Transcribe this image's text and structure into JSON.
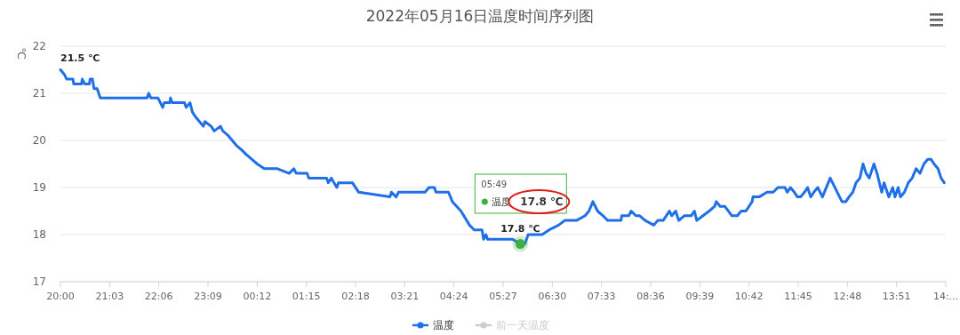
{
  "chart_data": {
    "type": "line",
    "title": "2022年05月16日温度时间序列图",
    "ylabel": "℃",
    "xlim": [
      "2022-05-15T20:00",
      "2022-05-16T14:54"
    ],
    "ylim": [
      17,
      22
    ],
    "yticks": [
      17,
      18,
      19,
      20,
      21,
      22
    ],
    "xticks": [
      {
        "value": "2022-05-15T20:00",
        "label": "20:00"
      },
      {
        "value": "2022-05-15T21:03",
        "label": "21:03"
      },
      {
        "value": "2022-05-15T22:06",
        "label": "22:06"
      },
      {
        "value": "2022-05-15T23:09",
        "label": "23:09"
      },
      {
        "value": "2022-05-16T00:12",
        "label": "00:12"
      },
      {
        "value": "2022-05-16T01:15",
        "label": "01:15"
      },
      {
        "value": "2022-05-16T02:18",
        "label": "02:18"
      },
      {
        "value": "2022-05-16T03:21",
        "label": "03:21"
      },
      {
        "value": "2022-05-16T04:24",
        "label": "04:24"
      },
      {
        "value": "2022-05-16T05:27",
        "label": "05:27"
      },
      {
        "value": "2022-05-16T06:30",
        "label": "06:30"
      },
      {
        "value": "2022-05-16T07:33",
        "label": "07:33"
      },
      {
        "value": "2022-05-16T08:36",
        "label": "08:36"
      },
      {
        "value": "2022-05-16T09:39",
        "label": "09:39"
      },
      {
        "value": "2022-05-16T10:42",
        "label": "10:42"
      },
      {
        "value": "2022-05-16T11:45",
        "label": "11:45"
      },
      {
        "value": "2022-05-16T12:48",
        "label": "12:48"
      },
      {
        "value": "2022-05-16T13:51",
        "label": "13:51"
      },
      {
        "value": "2022-05-16T14:54",
        "label": "14:..."
      }
    ],
    "grid": "y",
    "legend": "bottom",
    "series": [
      {
        "name": "温度",
        "color": "#1f6fe8",
        "x": [
          "2022-05-15T20:00",
          "2022-05-15T20:05",
          "2022-05-15T20:08",
          "2022-05-15T20:16",
          "2022-05-15T20:17",
          "2022-05-15T20:27",
          "2022-05-15T20:28",
          "2022-05-15T20:31",
          "2022-05-15T20:37",
          "2022-05-15T20:38",
          "2022-05-15T20:41",
          "2022-05-15T20:43",
          "2022-05-15T20:47",
          "2022-05-15T20:51",
          "2022-05-15T21:51",
          "2022-05-15T21:53",
          "2022-05-15T21:56",
          "2022-05-15T22:05",
          "2022-05-15T22:08",
          "2022-05-15T22:11",
          "2022-05-15T22:13",
          "2022-05-15T22:20",
          "2022-05-15T22:21",
          "2022-05-15T22:23",
          "2022-05-15T22:39",
          "2022-05-15T22:41",
          "2022-05-15T22:46",
          "2022-05-15T22:49",
          "2022-05-15T22:53",
          "2022-05-15T22:58",
          "2022-05-15T23:03",
          "2022-05-15T23:05",
          "2022-05-15T23:13",
          "2022-05-15T23:17",
          "2022-05-15T23:25",
          "2022-05-15T23:28",
          "2022-05-15T23:35",
          "2022-05-15T23:40",
          "2022-05-15T23:45",
          "2022-05-15T23:52",
          "2022-05-15T23:58",
          "2022-05-16T00:05",
          "2022-05-16T00:12",
          "2022-05-16T00:21",
          "2022-05-16T00:38",
          "2022-05-16T00:53",
          "2022-05-16T00:59",
          "2022-05-16T01:02",
          "2022-05-16T01:16",
          "2022-05-16T01:18",
          "2022-05-16T01:41",
          "2022-05-16T01:43",
          "2022-05-16T01:47",
          "2022-05-16T01:54",
          "2022-05-16T01:56",
          "2022-05-16T02:14",
          "2022-05-16T02:22",
          "2022-05-16T03:02",
          "2022-05-16T03:04",
          "2022-05-16T03:10",
          "2022-05-16T03:13",
          "2022-05-16T03:47",
          "2022-05-16T03:52",
          "2022-05-16T03:59",
          "2022-05-16T04:01",
          "2022-05-16T04:17",
          "2022-05-16T04:22",
          "2022-05-16T04:33",
          "2022-05-16T04:44",
          "2022-05-16T04:50",
          "2022-05-16T05:00",
          "2022-05-16T05:02",
          "2022-05-16T05:05",
          "2022-05-16T05:07",
          "2022-05-16T05:39",
          "2022-05-16T05:49",
          "2022-05-16T05:55",
          "2022-05-16T05:59",
          "2022-05-16T06:17",
          "2022-05-16T06:26",
          "2022-05-16T06:38",
          "2022-05-16T06:46",
          "2022-05-16T07:01",
          "2022-05-16T07:12",
          "2022-05-16T07:17",
          "2022-05-16T07:22",
          "2022-05-16T07:28",
          "2022-05-16T07:35",
          "2022-05-16T07:41",
          "2022-05-16T07:58",
          "2022-05-16T07:59",
          "2022-05-16T08:08",
          "2022-05-16T08:11",
          "2022-05-16T08:17",
          "2022-05-16T08:22",
          "2022-05-16T08:29",
          "2022-05-16T08:40",
          "2022-05-16T08:45",
          "2022-05-16T08:52",
          "2022-05-16T08:56",
          "2022-05-16T09:00",
          "2022-05-16T09:03",
          "2022-05-16T09:08",
          "2022-05-16T09:12",
          "2022-05-16T09:19",
          "2022-05-16T09:28",
          "2022-05-16T09:32",
          "2022-05-16T09:35",
          "2022-05-16T09:43",
          "2022-05-16T09:51",
          "2022-05-16T09:58",
          "2022-05-16T10:00",
          "2022-05-16T10:05",
          "2022-05-16T10:11",
          "2022-05-16T10:20",
          "2022-05-16T10:27",
          "2022-05-16T10:32",
          "2022-05-16T10:38",
          "2022-05-16T10:46",
          "2022-05-16T10:47",
          "2022-05-16T10:55",
          "2022-05-16T11:05",
          "2022-05-16T11:13",
          "2022-05-16T11:19",
          "2022-05-16T11:28",
          "2022-05-16T11:31",
          "2022-05-16T11:35",
          "2022-05-16T11:40",
          "2022-05-16T11:44",
          "2022-05-16T11:48",
          "2022-05-16T11:53",
          "2022-05-16T11:57",
          "2022-05-16T12:01",
          "2022-05-16T12:05",
          "2022-05-16T12:10",
          "2022-05-16T12:16",
          "2022-05-16T12:26",
          "2022-05-16T12:35",
          "2022-05-16T12:41",
          "2022-05-16T12:46",
          "2022-05-16T12:50",
          "2022-05-16T12:55",
          "2022-05-16T12:59",
          "2022-05-16T13:04",
          "2022-05-16T13:08",
          "2022-05-16T13:12",
          "2022-05-16T13:16",
          "2022-05-16T13:20",
          "2022-05-16T13:22",
          "2022-05-16T13:26",
          "2022-05-16T13:32",
          "2022-05-16T13:35",
          "2022-05-16T13:41",
          "2022-05-16T13:46",
          "2022-05-16T13:49",
          "2022-05-16T13:53",
          "2022-05-16T13:56",
          "2022-05-16T14:01",
          "2022-05-16T14:06",
          "2022-05-16T14:11",
          "2022-05-16T14:16",
          "2022-05-16T14:21",
          "2022-05-16T14:26",
          "2022-05-16T14:31",
          "2022-05-16T14:35",
          "2022-05-16T14:39",
          "2022-05-16T14:44",
          "2022-05-16T14:48",
          "2022-05-16T14:52"
        ],
        "values": [
          21.5,
          21.4,
          21.3,
          21.3,
          21.2,
          21.2,
          21.3,
          21.2,
          21.2,
          21.3,
          21.3,
          21.1,
          21.1,
          20.9,
          20.9,
          21.0,
          20.9,
          20.9,
          20.8,
          20.7,
          20.8,
          20.8,
          20.9,
          20.8,
          20.8,
          20.7,
          20.8,
          20.6,
          20.5,
          20.4,
          20.3,
          20.4,
          20.3,
          20.2,
          20.3,
          20.2,
          20.1,
          20.0,
          19.9,
          19.8,
          19.7,
          19.6,
          19.5,
          19.4,
          19.4,
          19.3,
          19.4,
          19.3,
          19.3,
          19.2,
          19.2,
          19.1,
          19.2,
          19.0,
          19.1,
          19.1,
          18.9,
          18.8,
          18.9,
          18.8,
          18.9,
          18.9,
          19.0,
          19.0,
          18.9,
          18.9,
          18.7,
          18.5,
          18.2,
          18.1,
          18.1,
          17.9,
          18.0,
          17.9,
          17.9,
          17.8,
          17.8,
          18.0,
          18.0,
          18.1,
          18.2,
          18.3,
          18.3,
          18.4,
          18.5,
          18.7,
          18.5,
          18.4,
          18.3,
          18.3,
          18.4,
          18.4,
          18.5,
          18.4,
          18.4,
          18.3,
          18.2,
          18.3,
          18.3,
          18.4,
          18.5,
          18.4,
          18.5,
          18.3,
          18.4,
          18.4,
          18.5,
          18.3,
          18.4,
          18.5,
          18.6,
          18.7,
          18.6,
          18.6,
          18.4,
          18.4,
          18.5,
          18.5,
          18.7,
          18.8,
          18.8,
          18.9,
          18.9,
          19.0,
          19.0,
          18.9,
          19.0,
          18.9,
          18.8,
          18.8,
          18.9,
          19.0,
          18.8,
          18.9,
          19.0,
          18.8,
          19.2,
          18.9,
          18.7,
          18.7,
          18.8,
          18.9,
          19.1,
          19.2,
          19.5,
          19.3,
          19.2,
          19.4,
          19.5,
          19.3,
          18.9,
          19.1,
          18.8,
          19.0,
          18.8,
          19.0,
          18.8,
          18.9,
          19.1,
          19.2,
          19.4,
          19.3,
          19.5,
          19.6,
          19.6,
          19.5,
          19.4,
          19.2,
          19.1
        ]
      },
      {
        "name": "前一天温度",
        "color": "#cccccc"
      }
    ],
    "annotations": [
      {
        "text": "21.5 ℃",
        "x": "2022-05-15T20:00",
        "y": 21.5
      },
      {
        "text": "17.8 ℃",
        "x": "2022-05-16T05:49",
        "y": 17.8
      },
      "05:49",
      "17.8 ℃"
    ]
  }
}
